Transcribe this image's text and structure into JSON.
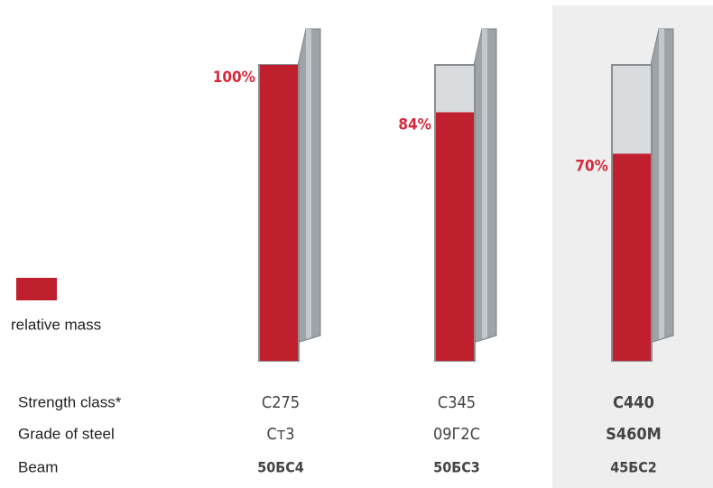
{
  "chart_data": {
    "type": "bar",
    "values": [
      100,
      84,
      70
    ],
    "value_labels": [
      "100%",
      "84%",
      "70%"
    ],
    "color": "#c0202e",
    "legend": {
      "label": "relative mass"
    },
    "rows": [
      {
        "label": "Strength class*",
        "values": [
          "C275",
          "C345",
          "C440"
        ]
      },
      {
        "label": "Grade of steel",
        "values": [
          "Ст3",
          "09Г2С",
          "S460M"
        ]
      },
      {
        "label": "Beam",
        "values": [
          "50БС4",
          "50БС3",
          "45БС2"
        ]
      }
    ]
  }
}
